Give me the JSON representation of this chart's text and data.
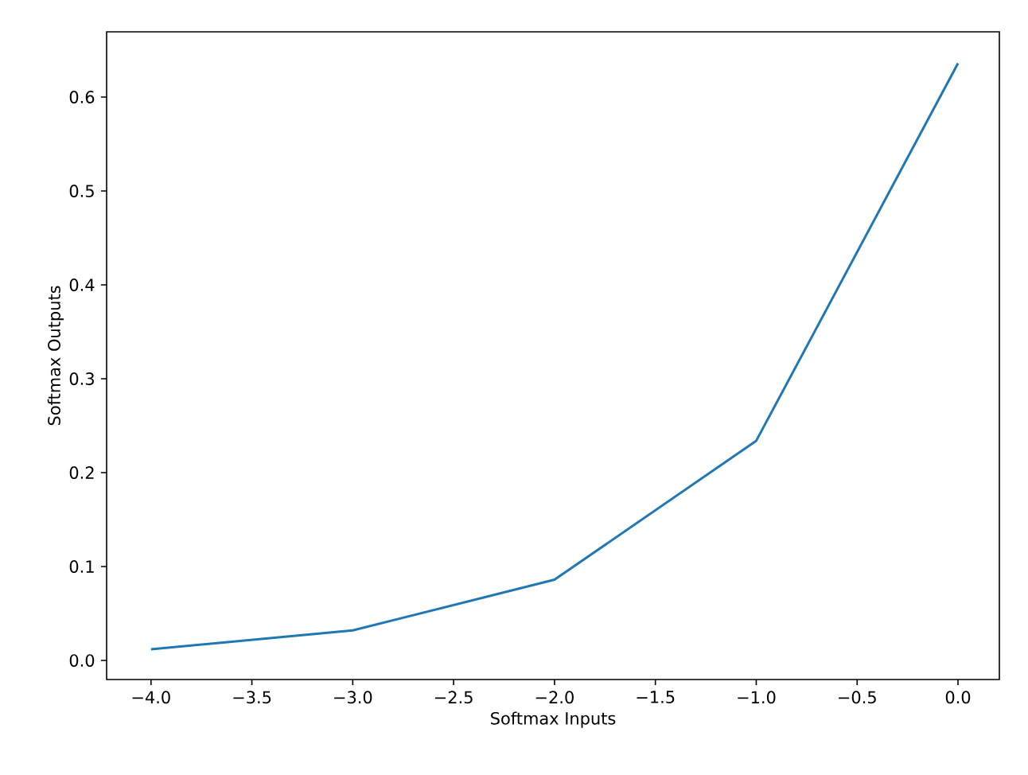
{
  "chart_data": {
    "type": "line",
    "xlabel": "Softmax Inputs",
    "ylabel": "Softmax Outputs",
    "x": [
      -4,
      -3,
      -2,
      -1,
      0
    ],
    "series": [
      {
        "color": "#1f77b4",
        "values": [
          0.012,
          0.032,
          0.086,
          0.234,
          0.636
        ]
      }
    ],
    "xlim": [
      -4.22,
      0.205
    ],
    "ylim": [
      -0.0203,
      0.6695
    ],
    "xticks": [
      {
        "value": -4,
        "label": "−4.0"
      },
      {
        "value": -3.5,
        "label": "−3.5"
      },
      {
        "value": -3,
        "label": "−3.0"
      },
      {
        "value": -2.5,
        "label": "−2.5"
      },
      {
        "value": -2,
        "label": "−2.0"
      },
      {
        "value": -1.5,
        "label": "−1.5"
      },
      {
        "value": -1,
        "label": "−1.0"
      },
      {
        "value": -0.5,
        "label": "−0.5"
      },
      {
        "value": 0,
        "label": "0.0"
      }
    ],
    "yticks": [
      {
        "value": 0,
        "label": "0.0"
      },
      {
        "value": 0.1,
        "label": "0.1"
      },
      {
        "value": 0.2,
        "label": "0.2"
      },
      {
        "value": 0.3,
        "label": "0.3"
      },
      {
        "value": 0.4,
        "label": "0.4"
      },
      {
        "value": 0.5,
        "label": "0.5"
      },
      {
        "value": 0.6,
        "label": "0.6"
      }
    ],
    "marker": "none",
    "line_style": "solid"
  }
}
